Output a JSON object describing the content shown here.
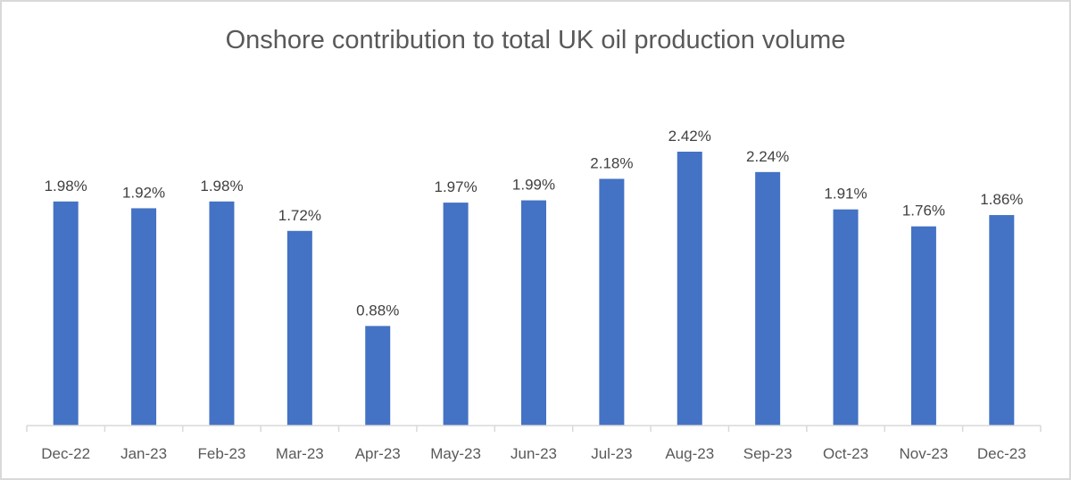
{
  "chart_data": {
    "type": "bar",
    "title": "Onshore contribution to total UK oil production volume",
    "xlabel": "",
    "ylabel": "",
    "categories": [
      "Dec-22",
      "Jan-23",
      "Feb-23",
      "Mar-23",
      "Apr-23",
      "May-23",
      "Jun-23",
      "Jul-23",
      "Aug-23",
      "Sep-23",
      "Oct-23",
      "Nov-23",
      "Dec-23"
    ],
    "values": [
      1.98,
      1.92,
      1.98,
      1.72,
      0.88,
      1.97,
      1.99,
      2.18,
      2.42,
      2.24,
      1.91,
      1.76,
      1.86
    ],
    "data_labels": [
      "1.98%",
      "1.92%",
      "1.98%",
      "1.72%",
      "0.88%",
      "1.97%",
      "1.99%",
      "2.18%",
      "2.42%",
      "2.24%",
      "1.91%",
      "1.76%",
      "1.86%"
    ],
    "ylim": [
      0,
      2.42
    ],
    "grid": false,
    "legend": "none",
    "bar_color": "#4472C4"
  }
}
